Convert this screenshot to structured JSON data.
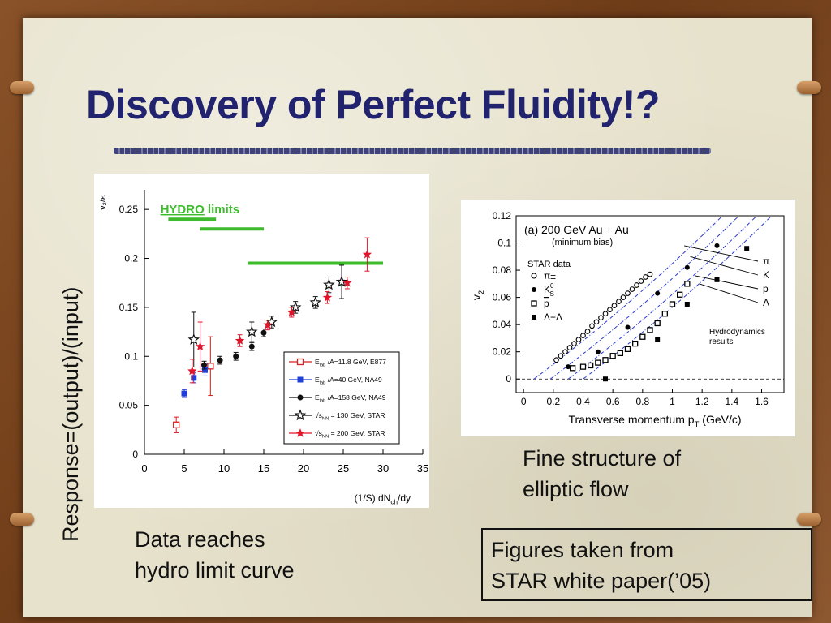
{
  "slide": {
    "title": "Discovery of Perfect Fluidity!?",
    "vertical_label": "Response=(output)/(input)",
    "left_caption_line1": "Data reaches",
    "left_caption_line2": "hydro limit curve",
    "right_caption_line1": "Fine structure of",
    "right_caption_line2": "elliptic flow",
    "source_line1": "Figures taken from",
    "source_line2": "STAR white paper(’05)",
    "colors": {
      "title": "#22236e",
      "paper": "#e7e2cc",
      "frame": "#7a4520"
    }
  },
  "chart_data": [
    {
      "type": "scatter",
      "ylabel": "v₂/ε",
      "xlabel": "(1/S) dN",
      "xlabel_sub": "ch",
      "xlabel_tail": "/dy",
      "xlim": [
        0,
        35
      ],
      "ylim": [
        0,
        0.27
      ],
      "xticks": [
        0,
        5,
        10,
        15,
        20,
        25,
        30,
        35
      ],
      "yticks": [
        0,
        0.05,
        0.1,
        0.15,
        0.2,
        0.25
      ],
      "xtick_labels": [
        "0",
        "5",
        "10",
        "15",
        "20",
        "25",
        "30",
        "35"
      ],
      "ytick_labels": [
        "0",
        "0.05",
        "0.1",
        "0.15",
        "0.2",
        "0.25"
      ],
      "annotation": {
        "word1": "HYDRO",
        "word2": "limits",
        "color": "#3dbb2c"
      },
      "hydro_limits": [
        {
          "x1": 3,
          "x2": 9,
          "y": 0.24
        },
        {
          "x1": 7,
          "x2": 15,
          "y": 0.23
        },
        {
          "x1": 13,
          "x2": 30,
          "y": 0.195
        }
      ],
      "legend_position": "bottom-right",
      "series": [
        {
          "name": "E_lab /A=11.8 GeV, E877",
          "leg_main": "E",
          "leg_sub": "lab",
          "leg_tail": " /A=11.8 GeV, E877",
          "marker": "open-square",
          "color": "#d32020",
          "points": [
            {
              "x": 4.0,
              "y": 0.03,
              "e": 0.008
            },
            {
              "x": 8.3,
              "y": 0.09,
              "e": 0.03
            }
          ]
        },
        {
          "name": "E_lab /A=40 GeV, NA49",
          "leg_main": "E",
          "leg_sub": "lab",
          "leg_tail": " /A=40 GeV, NA49",
          "marker": "filled-square",
          "color": "#1f3fd6",
          "points": [
            {
              "x": 5.0,
              "y": 0.062,
              "e": 0.004
            },
            {
              "x": 6.2,
              "y": 0.078,
              "e": 0.005
            },
            {
              "x": 7.6,
              "y": 0.086,
              "e": 0.006
            }
          ]
        },
        {
          "name": "E_lab /A=158 GeV, NA49",
          "leg_main": "E",
          "leg_sub": "lab",
          "leg_tail": " /A=158 GeV, NA49",
          "marker": "filled-circle",
          "color": "#111111",
          "points": [
            {
              "x": 7.5,
              "y": 0.091,
              "e": 0.004
            },
            {
              "x": 9.5,
              "y": 0.096,
              "e": 0.004
            },
            {
              "x": 11.5,
              "y": 0.1,
              "e": 0.004
            },
            {
              "x": 13.5,
              "y": 0.11,
              "e": 0.004
            },
            {
              "x": 15.0,
              "y": 0.124,
              "e": 0.004
            }
          ]
        },
        {
          "name": "√s_NN = 130 GeV, STAR",
          "leg_main": "√s",
          "leg_sub": "NN",
          "leg_tail": " = 130 GeV, STAR",
          "marker": "open-star",
          "color": "#111111",
          "points": [
            {
              "x": 6.2,
              "y": 0.117,
              "e": 0.028
            },
            {
              "x": 13.5,
              "y": 0.125,
              "e": 0.01
            },
            {
              "x": 16.0,
              "y": 0.135,
              "e": 0.006
            },
            {
              "x": 19.0,
              "y": 0.15,
              "e": 0.006
            },
            {
              "x": 21.5,
              "y": 0.155,
              "e": 0.006
            },
            {
              "x": 23.2,
              "y": 0.173,
              "e": 0.008
            },
            {
              "x": 24.8,
              "y": 0.176,
              "e": 0.017
            }
          ]
        },
        {
          "name": "√s_NN = 200 GeV, STAR",
          "leg_main": "√s",
          "leg_sub": "NN",
          "leg_tail": " = 200 GeV, STAR",
          "marker": "filled-star",
          "color": "#e0142a",
          "points": [
            {
              "x": 6.0,
              "y": 0.085,
              "e": 0.012
            },
            {
              "x": 7.0,
              "y": 0.11,
              "e": 0.025
            },
            {
              "x": 12.0,
              "y": 0.116,
              "e": 0.006
            },
            {
              "x": 15.5,
              "y": 0.132,
              "e": 0.005
            },
            {
              "x": 18.5,
              "y": 0.145,
              "e": 0.005
            },
            {
              "x": 23.0,
              "y": 0.16,
              "e": 0.006
            },
            {
              "x": 25.5,
              "y": 0.175,
              "e": 0.006
            },
            {
              "x": 28.0,
              "y": 0.204,
              "e": 0.017
            }
          ]
        }
      ]
    },
    {
      "type": "scatter",
      "title": "(a) 200 GeV Au + Au",
      "subtitle": "(minimum bias)",
      "ylabel": "v",
      "ylabel_sub": "2",
      "xlabel": "Transverse momentum p",
      "xlabel_sub": "T",
      "xlabel_tail": " (GeV/c)",
      "xlim": [
        -0.05,
        1.75
      ],
      "ylim": [
        -0.01,
        0.12
      ],
      "xticks": [
        0,
        0.2,
        0.4,
        0.6,
        0.8,
        1.0,
        1.2,
        1.4,
        1.6
      ],
      "yticks": [
        0,
        0.02,
        0.04,
        0.06,
        0.08,
        0.1,
        0.12
      ],
      "xtick_labels": [
        "0",
        "0.2",
        "0.4",
        "0.6",
        "0.8",
        "1",
        "1.2",
        "1.4",
        "1.6"
      ],
      "ytick_labels": [
        "0",
        "0.02",
        "0.04",
        "0.06",
        "0.08",
        "0.1",
        "0.12"
      ],
      "legend_title": "STAR data",
      "legend_position": "left",
      "hydro_label_line1": "Hydrodynamics",
      "hydro_label_line2": "results",
      "particle_labels": [
        "π",
        "K",
        "p",
        "Λ"
      ],
      "series": [
        {
          "name": "π±",
          "legend": "π±",
          "marker": "open-circle",
          "points": [
            {
              "x": 0.22,
              "y": 0.014
            },
            {
              "x": 0.25,
              "y": 0.017
            },
            {
              "x": 0.28,
              "y": 0.02
            },
            {
              "x": 0.31,
              "y": 0.023
            },
            {
              "x": 0.34,
              "y": 0.026
            },
            {
              "x": 0.37,
              "y": 0.029
            },
            {
              "x": 0.4,
              "y": 0.032
            },
            {
              "x": 0.43,
              "y": 0.035
            },
            {
              "x": 0.46,
              "y": 0.039
            },
            {
              "x": 0.49,
              "y": 0.042
            },
            {
              "x": 0.52,
              "y": 0.045
            },
            {
              "x": 0.55,
              "y": 0.048
            },
            {
              "x": 0.58,
              "y": 0.051
            },
            {
              "x": 0.61,
              "y": 0.054
            },
            {
              "x": 0.64,
              "y": 0.057
            },
            {
              "x": 0.67,
              "y": 0.06
            },
            {
              "x": 0.7,
              "y": 0.063
            },
            {
              "x": 0.73,
              "y": 0.066
            },
            {
              "x": 0.76,
              "y": 0.069
            },
            {
              "x": 0.79,
              "y": 0.072
            },
            {
              "x": 0.82,
              "y": 0.075
            },
            {
              "x": 0.85,
              "y": 0.077
            }
          ]
        },
        {
          "name": "K0s",
          "legend": "K",
          "legend_sub": "S",
          "legend_sup": "0",
          "marker": "filled-circle",
          "points": [
            {
              "x": 0.3,
              "y": 0.009
            },
            {
              "x": 0.5,
              "y": 0.02
            },
            {
              "x": 0.7,
              "y": 0.038
            },
            {
              "x": 0.9,
              "y": 0.063
            },
            {
              "x": 1.1,
              "y": 0.082
            },
            {
              "x": 1.3,
              "y": 0.098
            }
          ]
        },
        {
          "name": "p̄",
          "legend": "p",
          "legend_overline": true,
          "marker": "open-square",
          "points": [
            {
              "x": 0.33,
              "y": 0.008
            },
            {
              "x": 0.4,
              "y": 0.009
            },
            {
              "x": 0.45,
              "y": 0.01
            },
            {
              "x": 0.5,
              "y": 0.012
            },
            {
              "x": 0.55,
              "y": 0.014
            },
            {
              "x": 0.6,
              "y": 0.017
            },
            {
              "x": 0.65,
              "y": 0.019
            },
            {
              "x": 0.7,
              "y": 0.022
            },
            {
              "x": 0.75,
              "y": 0.026
            },
            {
              "x": 0.8,
              "y": 0.031
            },
            {
              "x": 0.85,
              "y": 0.036
            },
            {
              "x": 0.9,
              "y": 0.041
            },
            {
              "x": 0.95,
              "y": 0.048
            },
            {
              "x": 1.0,
              "y": 0.055
            },
            {
              "x": 1.05,
              "y": 0.062
            },
            {
              "x": 1.1,
              "y": 0.07
            }
          ]
        },
        {
          "name": "Λ+Λ̄",
          "legend": "Λ+Λ",
          "marker": "filled-square",
          "points": [
            {
              "x": 0.55,
              "y": 0.0
            },
            {
              "x": 0.9,
              "y": 0.029
            },
            {
              "x": 1.1,
              "y": 0.055
            },
            {
              "x": 1.3,
              "y": 0.073
            },
            {
              "x": 1.5,
              "y": 0.096
            }
          ]
        }
      ]
    }
  ]
}
